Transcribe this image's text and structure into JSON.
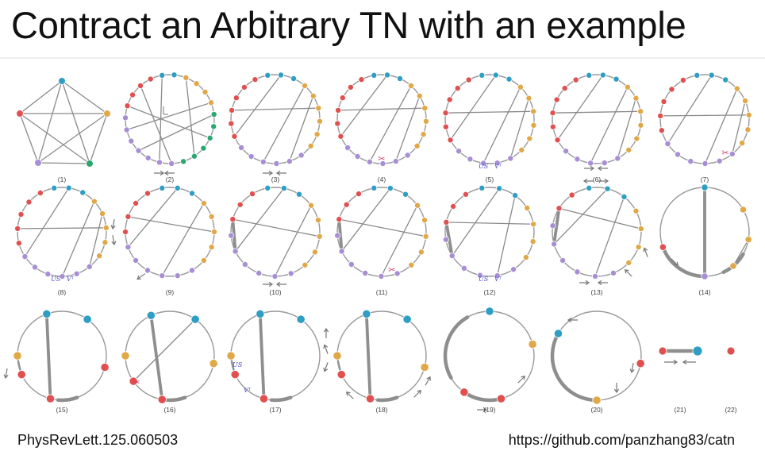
{
  "title": "Contract an Arbitrary TN with an example",
  "reference": "PhysRevLett.125.060503",
  "url": "https://github.com/panzhang83/catn",
  "panel_labels": [
    "(1)",
    "(2)",
    "(3)",
    "(4)",
    "(5)",
    "(6)",
    "(7)",
    "(8)",
    "(9)",
    "(10)",
    "(11)",
    "(12)",
    "(13)",
    "(14)",
    "(15)",
    "(16)",
    "(17)",
    "(18)",
    "(19)",
    "(20)",
    "(21)",
    "(22)"
  ],
  "svd_labels": {
    "us": "US",
    "vt": "Vᵀ"
  },
  "colors": {
    "teal": "#2e9ec4",
    "orange": "#e0a848",
    "red": "#e05050",
    "purple": "#a88ed4",
    "green": "#2aa870",
    "edge": "#8a8a8a",
    "arrow": "#777777",
    "mark": "#d04070",
    "svd": "#4b4bcf"
  }
}
